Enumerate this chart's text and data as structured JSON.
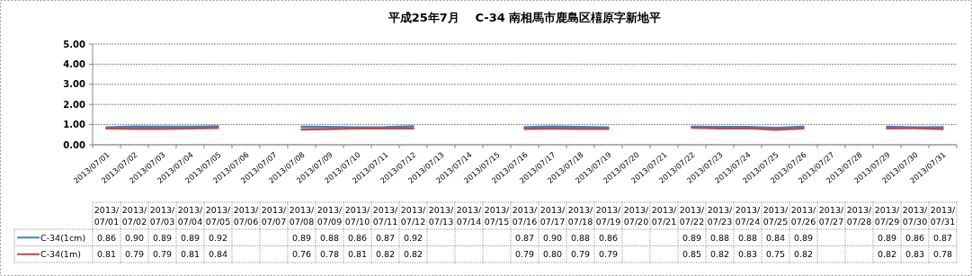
{
  "chart_data": {
    "type": "line",
    "title": "平成25年7月　 C-34 南相馬市鹿島区橲原字新地平",
    "categories": [
      "2013/07/01",
      "2013/07/02",
      "2013/07/03",
      "2013/07/04",
      "2013/07/05",
      "2013/07/06",
      "2013/07/07",
      "2013/07/08",
      "2013/07/09",
      "2013/07/10",
      "2013/07/11",
      "2013/07/12",
      "2013/07/13",
      "2013/07/14",
      "2013/07/15",
      "2013/07/16",
      "2013/07/17",
      "2013/07/18",
      "2013/07/19",
      "2013/07/20",
      "2013/07/21",
      "2013/07/22",
      "2013/07/23",
      "2013/07/24",
      "2013/07/25",
      "2013/07/26",
      "2013/07/27",
      "2013/07/28",
      "2013/07/29",
      "2013/07/30",
      "2013/07/31"
    ],
    "series": [
      {
        "name": "C-34(1cm)",
        "color": "#4a7ebb",
        "values": [
          0.86,
          0.9,
          0.89,
          0.89,
          0.92,
          null,
          null,
          0.89,
          0.88,
          0.86,
          0.87,
          0.92,
          null,
          null,
          null,
          0.87,
          0.9,
          0.88,
          0.86,
          null,
          null,
          0.89,
          0.88,
          0.88,
          0.84,
          0.89,
          null,
          null,
          0.89,
          0.86,
          0.87
        ],
        "value_labels": [
          "0.86",
          "0.90",
          "0.89",
          "0.89",
          "0.92",
          null,
          null,
          "0.89",
          "0.88",
          "0.86",
          "0.87",
          "0.92",
          null,
          null,
          null,
          "0.87",
          "0.90",
          "0.88",
          "0.86",
          null,
          null,
          "0.89",
          "0.88",
          "0.88",
          "0.84",
          "0.89",
          null,
          null,
          "0.89",
          "0.86",
          "0.87"
        ]
      },
      {
        "name": "C-34(1m)",
        "color": "#be4b48",
        "values": [
          0.81,
          0.79,
          0.79,
          0.81,
          0.84,
          null,
          null,
          0.76,
          0.78,
          0.81,
          0.82,
          0.82,
          null,
          null,
          null,
          0.79,
          0.8,
          0.79,
          0.79,
          null,
          null,
          0.85,
          0.82,
          0.83,
          0.75,
          0.82,
          null,
          null,
          0.82,
          0.83,
          0.78
        ],
        "value_labels": [
          "0.81",
          "0.79",
          "0.79",
          "0.81",
          "0.84",
          null,
          null,
          "0.76",
          "0.78",
          "0.81",
          "0.82",
          "0.82",
          null,
          null,
          null,
          "0.79",
          "0.80",
          "0.79",
          "0.79",
          null,
          null,
          "0.85",
          "0.82",
          "0.83",
          "0.75",
          "0.82",
          null,
          null,
          "0.82",
          "0.83",
          "0.78"
        ]
      }
    ],
    "ylim": [
      0,
      5
    ],
    "yticks": [
      {
        "value": 0,
        "label": "0.00"
      },
      {
        "value": 1,
        "label": "1.00"
      },
      {
        "value": 2,
        "label": "2.00"
      },
      {
        "value": 3,
        "label": "3.00"
      },
      {
        "value": 4,
        "label": "4.00"
      },
      {
        "value": 5,
        "label": "5.00"
      }
    ],
    "grid": "y",
    "legend": "bottom left",
    "marker": "none",
    "line_style": "solid"
  }
}
